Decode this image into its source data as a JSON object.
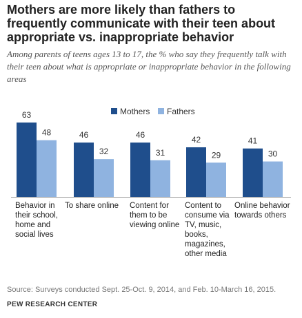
{
  "title": "Mothers are more likely than fathers to frequently communicate with their teen about appropriate vs. inappropriate behavior",
  "subtitle": "Among parents of teens ages 13 to 17, the % who say they frequently talk with their teen about what is appropriate or inappropriate behavior in the following areas",
  "source": "Source: Surveys conducted Sept. 25-Oct. 9, 2014, and Feb. 10-March 16, 2015.",
  "organization": "PEW RESEARCH CENTER",
  "colors": {
    "mothers": "#1f4e8c",
    "fathers": "#8fb3e0"
  },
  "chart_data": {
    "type": "bar",
    "categories": [
      "Behavior in their school, home and social lives",
      "To share online",
      "Content for them to be viewing online",
      "Content to consume via TV, music, books, magazines, other media",
      "Online behavior towards others"
    ],
    "series": [
      {
        "name": "Mothers",
        "values": [
          63,
          46,
          46,
          42,
          41
        ]
      },
      {
        "name": "Fathers",
        "values": [
          48,
          32,
          31,
          29,
          30
        ]
      }
    ],
    "ylim": [
      0,
      70
    ],
    "legend": "top-center",
    "grid": false
  }
}
